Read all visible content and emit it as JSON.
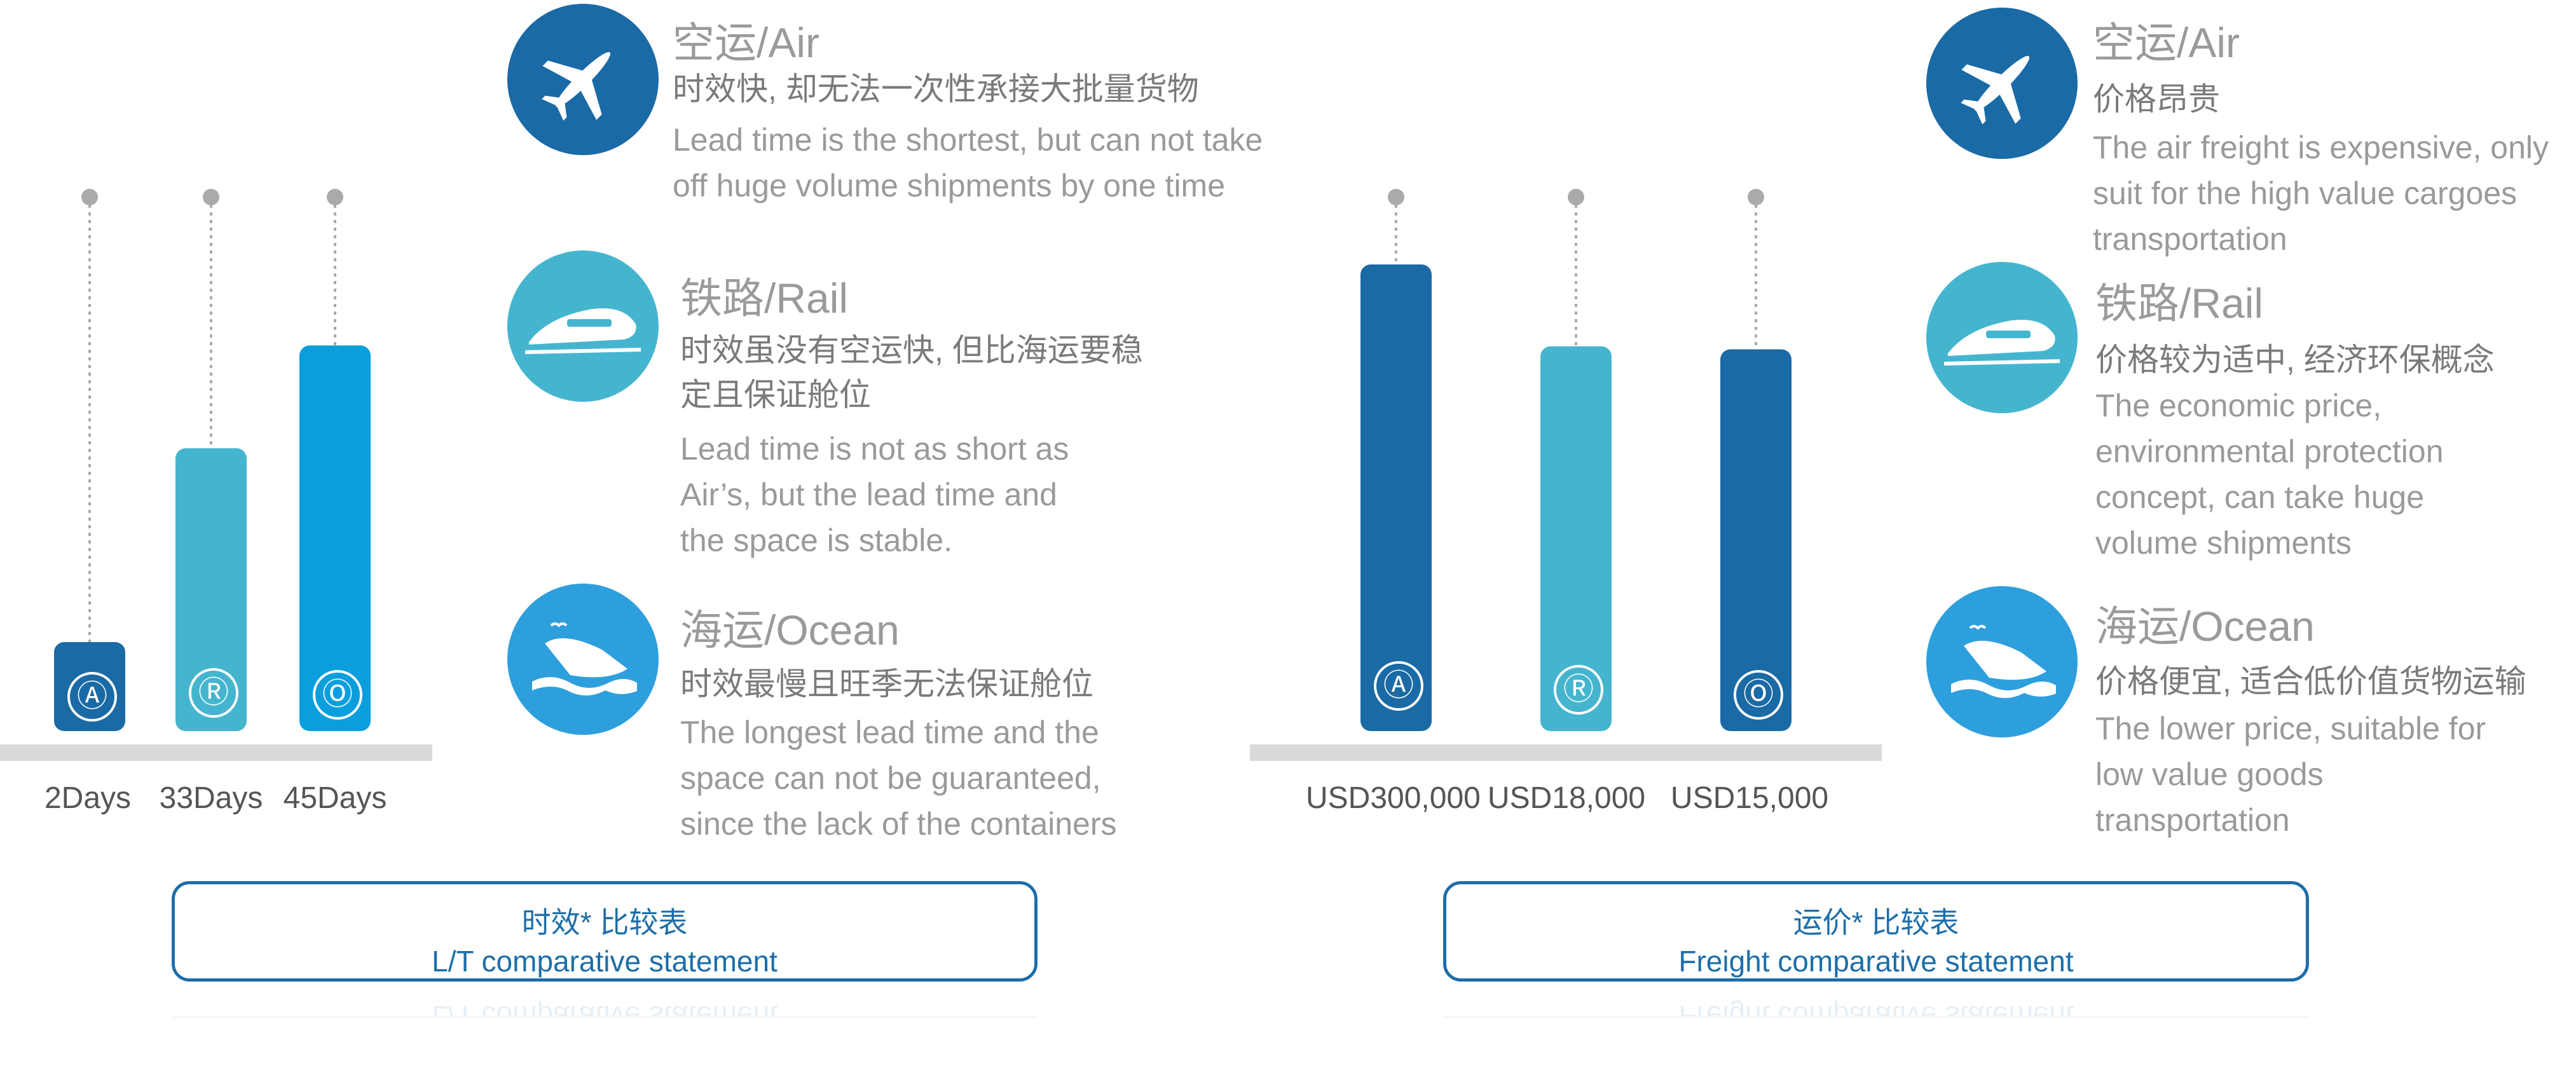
{
  "colors": {
    "air": "#1a6aa5",
    "rail": "#45b5cf",
    "ocean": "#2e9fdd",
    "ocean_bar": "#0a9fdc",
    "baseline": "#d9d9d9",
    "frame": "#1d6ea8"
  },
  "chart_data": [
    {
      "type": "bar",
      "categories": [
        "A",
        "R",
        "O"
      ],
      "values": [
        2,
        33,
        45
      ],
      "tick_labels": [
        "2Days",
        "33Days",
        "45Days"
      ],
      "badges": [
        "Ⓐ",
        "Ⓡ",
        "Ⓞ"
      ],
      "ylim": [
        0,
        50
      ],
      "grid": false
    },
    {
      "type": "bar",
      "categories": [
        "A",
        "R",
        "O"
      ],
      "values": [
        300000,
        18000,
        15000
      ],
      "tick_labels": [
        "USD300,000",
        "USD18,000",
        "USD15,000"
      ],
      "badges": [
        "Ⓐ",
        "Ⓡ",
        "Ⓞ"
      ],
      "grid": false
    }
  ],
  "lt_modes": [
    {
      "icon": "plane-icon",
      "title": "空运/Air",
      "zh": "时效快, 却无法一次性承接大批量货物",
      "en": [
        "Lead time is the shortest, but can not take",
        "off huge volume shipments by one time"
      ]
    },
    {
      "icon": "train-icon",
      "title": "铁路/Rail",
      "zh": [
        "时效虽没有空运快, 但比海运要稳",
        "定且保证舱位"
      ],
      "en": [
        "Lead time is not as short as",
        "Air’s, but the lead time and",
        "the space is stable."
      ]
    },
    {
      "icon": "ship-icon",
      "title": "海运/Ocean",
      "zh": "时效最慢且旺季无法保证舱位",
      "en": [
        "The longest lead time and the",
        "space can not be guaranteed,",
        "since the lack of the containers"
      ]
    }
  ],
  "freight_modes": [
    {
      "icon": "plane-icon",
      "title": "空运/Air",
      "zh": "价格昂贵",
      "en": [
        "The air freight is expensive, only",
        "suit for the high value cargoes",
        "transportation"
      ]
    },
    {
      "icon": "train-icon",
      "title": "铁路/Rail",
      "zh": "价格较为适中, 经济环保概念",
      "en": [
        "The economic price,",
        "environmental protection",
        "concept, can take huge",
        "volume shipments"
      ]
    },
    {
      "icon": "ship-icon",
      "title": "海运/Ocean",
      "zh": "价格便宜, 适合低价值货物运输",
      "en": [
        "The lower price, suitable for",
        "low value goods",
        "transportation"
      ]
    }
  ],
  "statements": {
    "lt": {
      "zh": "时效* 比较表",
      "en": "L/T comparative statement"
    },
    "freight": {
      "zh": "运价* 比较表",
      "en": "Freight comparative statement"
    }
  }
}
